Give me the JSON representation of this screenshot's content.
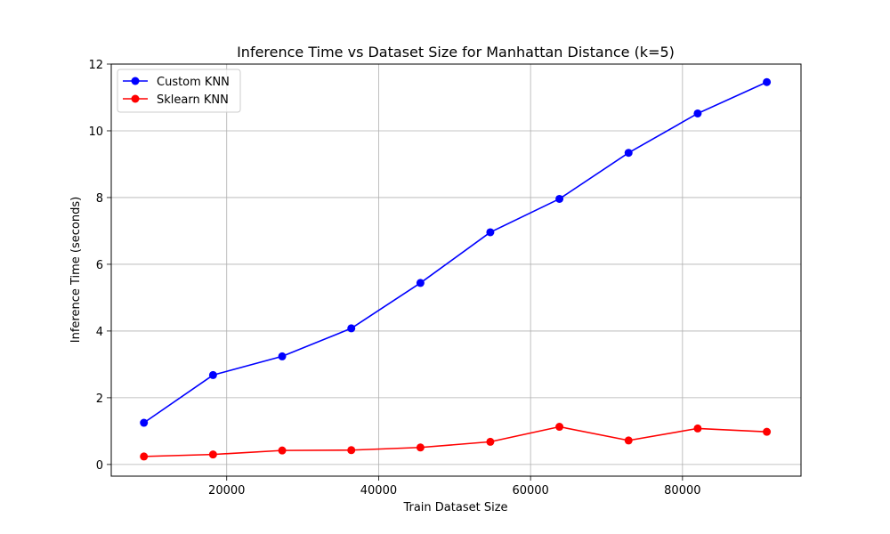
{
  "chart_data": {
    "type": "line",
    "title": "Inference Time vs Dataset Size for Manhattan Distance (k=5)",
    "xlabel": "Train Dataset Size",
    "ylabel": "Inference Time (seconds)",
    "xlim": [
      4800,
      95600
    ],
    "ylim": [
      -0.35,
      12
    ],
    "xticks": [
      20000,
      40000,
      60000,
      80000
    ],
    "yticks": [
      0,
      2,
      4,
      6,
      8,
      10,
      12
    ],
    "grid": true,
    "legend_position": "top-left",
    "x": [
      9100,
      18200,
      27300,
      36400,
      45500,
      54700,
      63800,
      72900,
      82000,
      91100
    ],
    "series": [
      {
        "name": "Custom KNN",
        "color": "#0000ff",
        "values": [
          1.25,
          2.68,
          3.24,
          4.08,
          5.44,
          6.96,
          7.96,
          9.34,
          10.52,
          11.46
        ]
      },
      {
        "name": "Sklearn KNN",
        "color": "#ff0000",
        "values": [
          0.24,
          0.3,
          0.42,
          0.43,
          0.51,
          0.68,
          1.13,
          0.72,
          1.08,
          0.98
        ]
      }
    ]
  }
}
